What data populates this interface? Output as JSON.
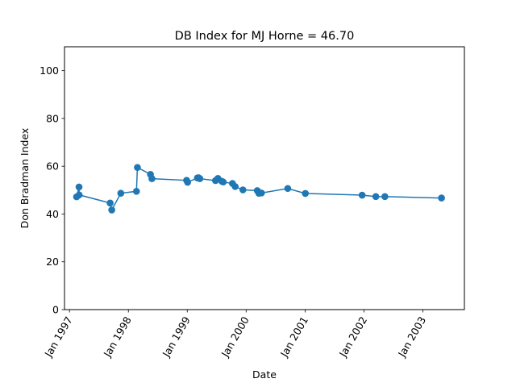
{
  "chart_data": {
    "type": "line",
    "title": "DB Index for MJ Horne = 46.70",
    "xlabel": "Date",
    "ylabel": "Don Bradman Index",
    "ylim": [
      0,
      110
    ],
    "yticks": [
      0,
      20,
      40,
      60,
      80,
      100
    ],
    "xlim": [
      "1996-12-01",
      "2003-09-15"
    ],
    "xticks": [
      {
        "date": "1997-01-01",
        "label": "Jan 1997"
      },
      {
        "date": "1998-01-01",
        "label": "Jan 1998"
      },
      {
        "date": "1999-01-01",
        "label": "Jan 1999"
      },
      {
        "date": "2000-01-01",
        "label": "Jan 2000"
      },
      {
        "date": "2001-01-01",
        "label": "Jan 2001"
      },
      {
        "date": "2002-01-01",
        "label": "Jan 2002"
      },
      {
        "date": "2003-01-01",
        "label": "Jan 2003"
      }
    ],
    "grid": false,
    "color": "#1f77b4",
    "series": [
      {
        "points": [
          {
            "x": "1997-02-14",
            "y": 47.2
          },
          {
            "x": "1997-03-01",
            "y": 51.3
          },
          {
            "x": "1997-03-02",
            "y": 48.0
          },
          {
            "x": "1997-09-10",
            "y": 44.6
          },
          {
            "x": "1997-09-20",
            "y": 41.7
          },
          {
            "x": "1997-11-15",
            "y": 48.7
          },
          {
            "x": "1998-02-20",
            "y": 49.5
          },
          {
            "x": "1998-02-26",
            "y": 59.5
          },
          {
            "x": "1998-05-18",
            "y": 56.6
          },
          {
            "x": "1998-05-27",
            "y": 54.8
          },
          {
            "x": "1998-12-28",
            "y": 54.1
          },
          {
            "x": "1999-01-03",
            "y": 53.3
          },
          {
            "x": "1999-03-05",
            "y": 55.1
          },
          {
            "x": "1999-03-12",
            "y": 55.2
          },
          {
            "x": "1999-03-20",
            "y": 54.8
          },
          {
            "x": "1999-06-25",
            "y": 54.0
          },
          {
            "x": "1999-07-10",
            "y": 54.9
          },
          {
            "x": "1999-08-03",
            "y": 53.7
          },
          {
            "x": "1999-08-12",
            "y": 53.4
          },
          {
            "x": "1999-10-08",
            "y": 52.8
          },
          {
            "x": "1999-10-25",
            "y": 51.5
          },
          {
            "x": "1999-12-12",
            "y": 50.1
          },
          {
            "x": "2000-03-10",
            "y": 49.8
          },
          {
            "x": "2000-03-20",
            "y": 48.7
          },
          {
            "x": "2000-04-05",
            "y": 48.8
          },
          {
            "x": "2000-09-15",
            "y": 50.7
          },
          {
            "x": "2001-01-02",
            "y": 48.6
          },
          {
            "x": "2001-12-20",
            "y": 47.9
          },
          {
            "x": "2002-03-15",
            "y": 47.3
          },
          {
            "x": "2002-05-10",
            "y": 47.3
          },
          {
            "x": "2003-04-26",
            "y": 46.7
          }
        ]
      }
    ]
  }
}
